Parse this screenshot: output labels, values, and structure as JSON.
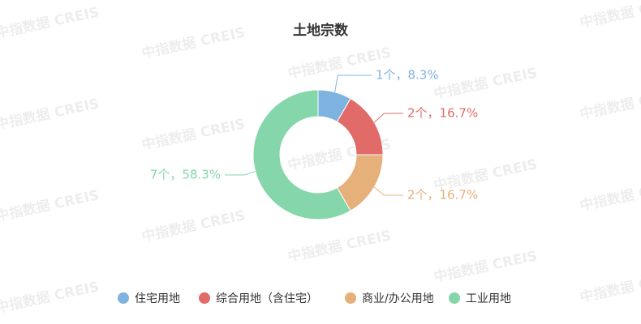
{
  "watermark": "中指数据 CREIS",
  "chart_data": {
    "type": "pie",
    "title": "土地宗数",
    "categories": [
      "住宅用地",
      "综合用地（含住宅）",
      "商业/办公用地",
      "工业用地"
    ],
    "values": [
      1,
      2,
      2,
      7
    ],
    "value_labels": [
      "1个，8.3%",
      "2个，16.7%",
      "2个，16.7%",
      "7个，58.3%"
    ],
    "colors": [
      "#7fb3df",
      "#e06b69",
      "#e6b07b",
      "#85d7ab"
    ]
  }
}
